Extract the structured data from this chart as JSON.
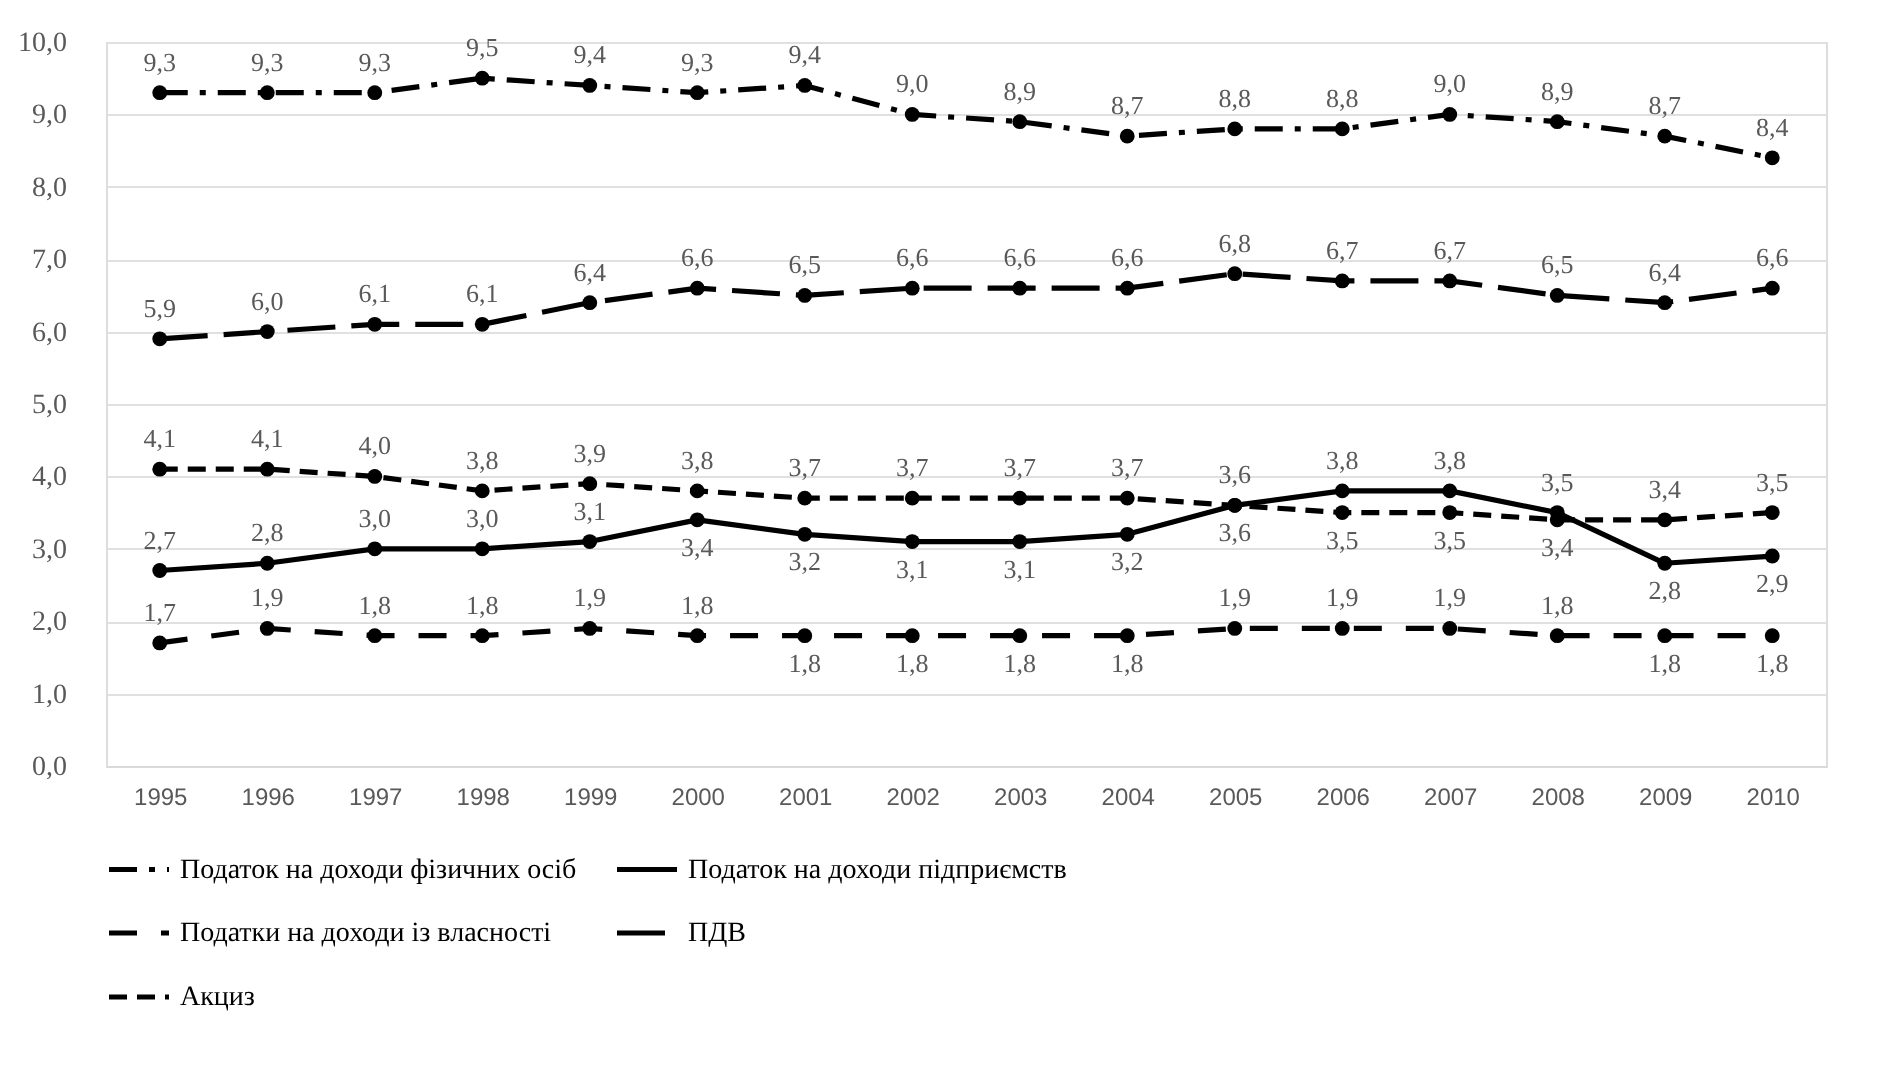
{
  "chart_data": {
    "type": "line",
    "categories": [
      "1995",
      "1996",
      "1997",
      "1998",
      "1999",
      "2000",
      "2001",
      "2002",
      "2003",
      "2004",
      "2005",
      "2006",
      "2007",
      "2008",
      "2009",
      "2010"
    ],
    "ylim": [
      0,
      10
    ],
    "yticks": [
      {
        "value": 0,
        "label": "0,0"
      },
      {
        "value": 1,
        "label": "1,0"
      },
      {
        "value": 2,
        "label": "2,0"
      },
      {
        "value": 3,
        "label": "3,0"
      },
      {
        "value": 4,
        "label": "4,0"
      },
      {
        "value": 5,
        "label": "5,0"
      },
      {
        "value": 6,
        "label": "6,0"
      },
      {
        "value": 7,
        "label": "7,0"
      },
      {
        "value": 8,
        "label": "8,0"
      },
      {
        "value": 9,
        "label": "9,0"
      },
      {
        "value": 10,
        "label": "10,0"
      }
    ],
    "grid": "y",
    "legend": "bottom",
    "marker": "circle",
    "series": [
      {
        "name": "Податок на доходи фізичних осіб",
        "color": "#000000",
        "line_style": "dashdot",
        "values": [
          9.3,
          9.3,
          9.3,
          9.5,
          9.4,
          9.3,
          9.4,
          9.0,
          8.9,
          8.7,
          8.8,
          8.8,
          9.0,
          8.9,
          8.7,
          8.4
        ],
        "value_labels": [
          "9,3",
          "9,3",
          "9,3",
          "9,5",
          "9,4",
          "9,3",
          "9,4",
          "9,0",
          "8,9",
          "8,7",
          "8,8",
          "8,8",
          "9,0",
          "8,9",
          "8,7",
          "8,4"
        ]
      },
      {
        "name": "Податок на доходи підприємств",
        "color": "#000000",
        "line_style": "solid",
        "values": [
          2.7,
          2.8,
          3.0,
          3.0,
          3.1,
          3.4,
          3.2,
          3.1,
          3.1,
          3.2,
          3.6,
          3.8,
          3.8,
          3.5,
          2.8,
          2.9
        ],
        "value_labels": [
          "2,7",
          "2,8",
          "3,0",
          "3,0",
          "3,1",
          "3,4",
          "3,2",
          "3,1",
          "3,1",
          "3,2",
          "3,6",
          "3,8",
          "3,8",
          "3,5",
          "2,8",
          "2,9"
        ]
      },
      {
        "name": "Податки на доходи із власності",
        "color": "#000000",
        "line_style": "dashed",
        "values": [
          1.7,
          1.9,
          1.8,
          1.8,
          1.9,
          1.8,
          1.8,
          1.8,
          1.8,
          1.8,
          1.9,
          1.9,
          1.9,
          1.8,
          1.8,
          1.8
        ],
        "value_labels": [
          "1,7",
          "1,9",
          "1,8",
          "1,8",
          "1,9",
          "1,8",
          "1,8",
          "1,8",
          "1,8",
          "1,8",
          "1,9",
          "1,9",
          "1,9",
          "1,8",
          "1,8",
          "1,8"
        ]
      },
      {
        "name": "ПДВ",
        "color": "#000000",
        "line_style": "dashed",
        "values": [
          5.9,
          6.0,
          6.1,
          6.1,
          6.4,
          6.6,
          6.5,
          6.6,
          6.6,
          6.6,
          6.8,
          6.7,
          6.7,
          6.5,
          6.4,
          6.6
        ],
        "value_labels": [
          "5,9",
          "6,0",
          "6,1",
          "6,1",
          "6,4",
          "6,6",
          "6,5",
          "6,6",
          "6,6",
          "6,6",
          "6,8",
          "6,7",
          "6,7",
          "6,5",
          "6,4",
          "6,6"
        ]
      },
      {
        "name": "Акциз",
        "color": "#000000",
        "line_style": "dashed",
        "values": [
          4.1,
          4.1,
          4.0,
          3.8,
          3.9,
          3.8,
          3.7,
          3.7,
          3.7,
          3.7,
          3.6,
          3.5,
          3.5,
          3.4,
          3.4,
          3.5
        ],
        "value_labels": [
          "4,1",
          "4,1",
          "4,0",
          "3,8",
          "3,9",
          "3,8",
          "3,7",
          "3,7",
          "3,7",
          "3,7",
          "3,6",
          "3,5",
          "3,5",
          "3,4",
          "3,4",
          "3,5"
        ]
      }
    ]
  }
}
